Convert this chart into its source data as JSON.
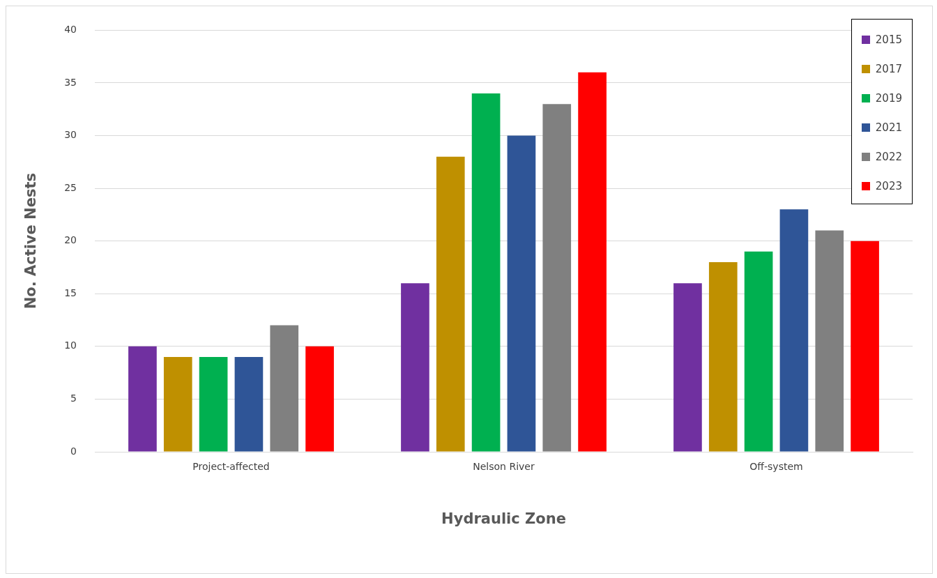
{
  "chart_data": {
    "type": "bar",
    "xlabel": "Hydraulic Zone",
    "ylabel": "No. Active Nests",
    "categories": [
      "Project-affected",
      "Nelson River",
      "Off-system"
    ],
    "series": [
      {
        "name": "2015",
        "color": "#7030a0",
        "values": [
          10,
          16,
          16
        ]
      },
      {
        "name": "2017",
        "color": "#bf9000",
        "values": [
          9,
          28,
          18
        ]
      },
      {
        "name": "2019",
        "color": "#00b050",
        "values": [
          9,
          34,
          19
        ]
      },
      {
        "name": "2021",
        "color": "#2f5597",
        "values": [
          9,
          30,
          23
        ]
      },
      {
        "name": "2022",
        "color": "#808080",
        "values": [
          12,
          33,
          21
        ]
      },
      {
        "name": "2023",
        "color": "#ff0000",
        "values": [
          10,
          36,
          20
        ]
      }
    ],
    "ylim": [
      0,
      40
    ],
    "yticks": [
      0,
      5,
      10,
      15,
      20,
      25,
      30,
      35,
      40
    ],
    "grid": "y",
    "legend": "top right"
  }
}
